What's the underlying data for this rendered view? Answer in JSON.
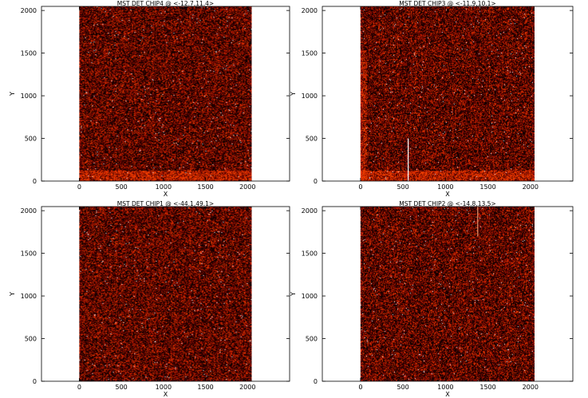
{
  "figure": {
    "background": "#ffffff",
    "colormap": [
      "#000000",
      "#3a0000",
      "#7a0a00",
      "#b41e00",
      "#ff3000",
      "#ffa050",
      "#ffffff"
    ]
  },
  "chart_data": [
    {
      "type": "heatmap",
      "title": "MST DET CHIP4  @ <-12.7,11.4>",
      "xlabel": "X",
      "ylabel": "Y",
      "xlim": [
        -450,
        2500
      ],
      "ylim": [
        0,
        2048
      ],
      "xticks": [
        0,
        500,
        1000,
        1500,
        2000
      ],
      "yticks": [
        0,
        500,
        1000,
        1500,
        2000
      ],
      "image_extent_x": [
        0,
        2048
      ],
      "image_extent_y": [
        0,
        2048
      ]
    },
    {
      "type": "heatmap",
      "title": "MST DET CHIP3  @ <-11.9,10.1>",
      "xlabel": "X",
      "ylabel": "Y",
      "xlim": [
        -450,
        2500
      ],
      "ylim": [
        0,
        2048
      ],
      "xticks": [
        0,
        500,
        1000,
        1500,
        2000
      ],
      "yticks": [
        0,
        500,
        1000,
        1500,
        2000
      ],
      "image_extent_x": [
        0,
        2048
      ],
      "image_extent_y": [
        0,
        2048
      ]
    },
    {
      "type": "heatmap",
      "title": "MST DET CHIP1  @ <-44.1,49.1>",
      "xlabel": "X",
      "ylabel": "Y",
      "xlim": [
        -450,
        2500
      ],
      "ylim": [
        0,
        2048
      ],
      "xticks": [
        0,
        500,
        1000,
        1500,
        2000
      ],
      "yticks": [
        0,
        500,
        1000,
        1500,
        2000
      ],
      "image_extent_x": [
        0,
        2048
      ],
      "image_extent_y": [
        0,
        2048
      ]
    },
    {
      "type": "heatmap",
      "title": "MST DET CHIP2  @ <-14.8,13.5>",
      "xlabel": "X",
      "ylabel": "Y",
      "xlim": [
        -450,
        2500
      ],
      "ylim": [
        0,
        2048
      ],
      "xticks": [
        0,
        500,
        1000,
        1500,
        2000
      ],
      "yticks": [
        0,
        500,
        1000,
        1500,
        2000
      ],
      "image_extent_x": [
        0,
        2048
      ],
      "image_extent_y": [
        0,
        2048
      ]
    }
  ]
}
